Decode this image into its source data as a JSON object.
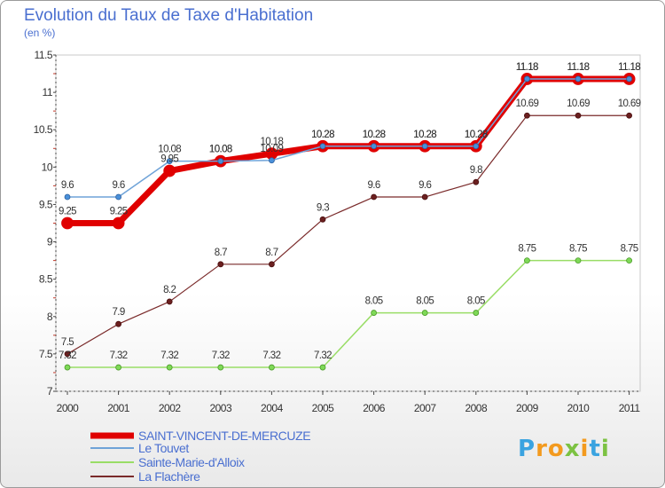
{
  "title": "Evolution du Taux de Taxe d'Habitation",
  "subtitle": "(en %)",
  "logo": "Proxiti",
  "chart_data": {
    "type": "line",
    "x": [
      "2000",
      "2001",
      "2002",
      "2003",
      "2004",
      "2005",
      "2006",
      "2007",
      "2008",
      "2009",
      "2010",
      "2011"
    ],
    "ylim": [
      7,
      11.5
    ],
    "yticks": [
      "7",
      "7.5",
      "8",
      "8.5",
      "9",
      "9.5",
      "10",
      "10.5",
      "11",
      "11.5"
    ],
    "grid": false,
    "legend_position": "bottom-left",
    "series": [
      {
        "name": "SAINT-VINCENT-DE-MERCUZE",
        "color": "#e00000",
        "values": [
          9.25,
          9.25,
          9.95,
          10.08,
          10.18,
          10.28,
          10.28,
          10.28,
          10.28,
          11.18,
          11.18,
          11.18
        ],
        "labels": [
          "9.25",
          "9.25",
          "9.95",
          "10.08",
          "10.18",
          "10.28",
          "10.28",
          "10.28",
          "10.28",
          "11.18",
          "11.18",
          "11.18"
        ]
      },
      {
        "name": "Le Touvet",
        "color": "#6fa3d8",
        "values": [
          9.6,
          9.6,
          10.08,
          10.08,
          10.09,
          10.28,
          10.28,
          10.28,
          10.28,
          11.18,
          11.18,
          11.18
        ],
        "labels": [
          "9.6",
          "9.6",
          "10.08",
          "10.08",
          "10.09",
          "10.28",
          "10.28",
          "10.28",
          "10.28",
          "11.18",
          "11.18",
          "11.18"
        ]
      },
      {
        "name": "Sainte-Marie-d'Alloix",
        "color": "#99dd66",
        "values": [
          7.32,
          7.32,
          7.32,
          7.32,
          7.32,
          7.32,
          8.05,
          8.05,
          8.05,
          8.75,
          8.75,
          8.75
        ],
        "labels": [
          "7.32",
          "7.32",
          "7.32",
          "7.32",
          "7.32",
          "7.32",
          "8.05",
          "8.05",
          "8.05",
          "8.75",
          "8.75",
          "8.75"
        ]
      },
      {
        "name": "La Flachère",
        "color": "#7a2a2a",
        "values": [
          7.5,
          7.9,
          8.2,
          8.7,
          8.7,
          9.3,
          9.6,
          9.6,
          9.8,
          10.69,
          10.69,
          10.69
        ],
        "labels": [
          "7.5",
          "7.9",
          "8.2",
          "8.7",
          "8.7",
          "9.3",
          "9.6",
          "9.6",
          "9.8",
          "10.69",
          "10.69",
          "10.69"
        ]
      }
    ]
  }
}
